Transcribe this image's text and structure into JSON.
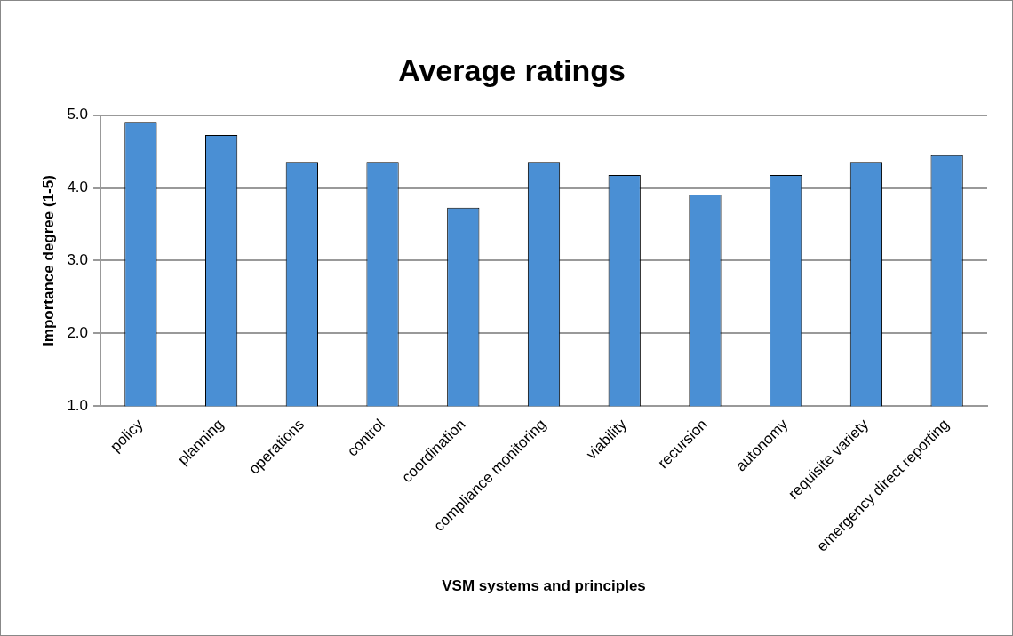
{
  "chart_data": {
    "type": "bar",
    "title": "Average ratings",
    "xlabel": "VSM systems and principles",
    "ylabel": "Importance degree (1-5)",
    "categories": [
      "policy",
      "planning",
      "operations",
      "control",
      "coordination",
      "compliance monitoring",
      "viability",
      "recursion",
      "autonomy",
      "requisite variety",
      "emergency direct reporting"
    ],
    "values": [
      4.91,
      4.73,
      4.36,
      4.36,
      3.73,
      4.36,
      4.18,
      3.91,
      4.18,
      4.36,
      4.45
    ],
    "color": "#4a8fd4",
    "ylim": [
      1,
      5
    ],
    "yticks": [
      {
        "value": 1,
        "label": "1.0"
      },
      {
        "value": 2,
        "label": "2.0"
      },
      {
        "value": 3,
        "label": "3.0"
      },
      {
        "value": 4,
        "label": "4.0"
      },
      {
        "value": 5,
        "label": "5.0"
      }
    ],
    "grid": "y",
    "legend": false
  }
}
